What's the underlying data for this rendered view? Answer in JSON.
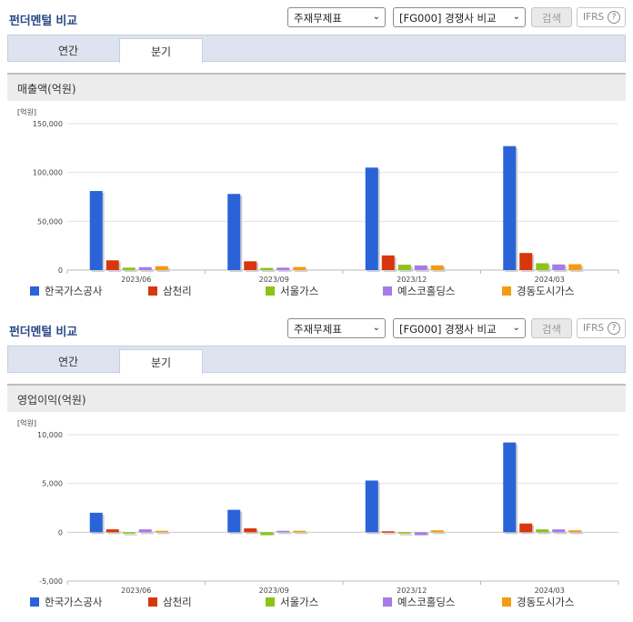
{
  "controls": {
    "title": "펀더멘털 비교",
    "statement_select": "주재무제표",
    "peer_select": "[FG000] 경쟁사 비교",
    "search_label": "검색",
    "ifrs_label": "IFRS",
    "help_glyph": "?",
    "tabs": [
      "연간",
      "분기"
    ],
    "active_tab": "분기"
  },
  "panels": [
    {
      "metric_label": "매출액(억원)",
      "unit_label": "[억원]"
    },
    {
      "metric_label": "영업이익(억원)",
      "unit_label": "[억원]"
    }
  ],
  "chart_data": [
    {
      "type": "bar",
      "title": "매출액(억원)",
      "unit": "[억원]",
      "categories": [
        "2023/06",
        "2023/09",
        "2023/12",
        "2024/03"
      ],
      "ylim": [
        0,
        150000
      ],
      "yticks": [
        0,
        50000,
        100000,
        150000
      ],
      "ytick_labels": [
        "0",
        "50,000",
        "100,000",
        "150,000"
      ],
      "grid": true,
      "legend_position": "bottom",
      "series": [
        {
          "name": "한국가스공사",
          "color": "#2a63d8",
          "values": [
            81000,
            78000,
            105000,
            127000
          ]
        },
        {
          "name": "삼천리",
          "color": "#d8360e",
          "values": [
            10000,
            9000,
            15000,
            17500
          ]
        },
        {
          "name": "서울가스",
          "color": "#8cc21a",
          "values": [
            2500,
            2200,
            5500,
            7000
          ]
        },
        {
          "name": "예스코홀딩스",
          "color": "#a67be6",
          "values": [
            3000,
            2500,
            4800,
            5800
          ]
        },
        {
          "name": "경동도시가스",
          "color": "#f59a12",
          "values": [
            4000,
            3200,
            4800,
            6000
          ]
        }
      ]
    },
    {
      "type": "bar",
      "title": "영업이익(억원)",
      "unit": "[억원]",
      "categories": [
        "2023/06",
        "2023/09",
        "2023/12",
        "2024/03"
      ],
      "ylim": [
        -5000,
        10000
      ],
      "yticks": [
        -5000,
        0,
        5000,
        10000
      ],
      "ytick_labels": [
        "-5,000",
        "0",
        "5,000",
        "10,000"
      ],
      "grid": true,
      "legend_position": "bottom",
      "series": [
        {
          "name": "한국가스공사",
          "color": "#2a63d8",
          "values": [
            2000,
            2300,
            5300,
            9200
          ]
        },
        {
          "name": "삼천리",
          "color": "#d8360e",
          "values": [
            300,
            400,
            100,
            900
          ]
        },
        {
          "name": "서울가스",
          "color": "#8cc21a",
          "values": [
            0,
            -300,
            0,
            300
          ]
        },
        {
          "name": "예스코홀딩스",
          "color": "#a67be6",
          "values": [
            300,
            150,
            -300,
            300
          ]
        },
        {
          "name": "경동도시가스",
          "color": "#f59a12",
          "values": [
            150,
            150,
            200,
            200
          ]
        }
      ]
    }
  ]
}
